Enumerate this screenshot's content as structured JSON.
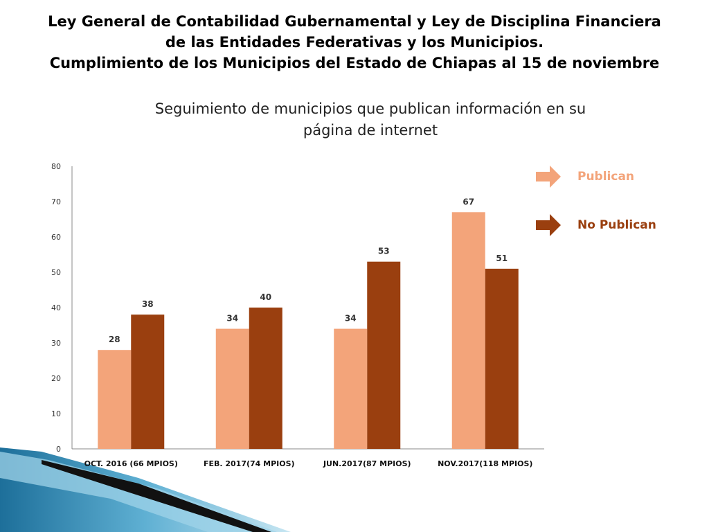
{
  "heading": {
    "line1": "Ley General de Contabilidad Gubernamental y Ley de Disciplina Financiera",
    "line2": "de las Entidades Federativas y los Municipios.",
    "line3": "Cumplimiento de los Municipios del Estado de Chiapas al 15 de noviembre"
  },
  "chart_data": {
    "type": "bar",
    "title": "Seguimiento de municipios que publican información en su página de internet",
    "title_lines": [
      "Seguimiento de municipios que publican información en su",
      "página de internet"
    ],
    "categories": [
      "OCT. 2016 (66 MPIOS)",
      "FEB. 2017(74 MPIOS)",
      "JUN.2017(87 MPIOS)",
      "NOV.2017(118 MPIOS)"
    ],
    "series": [
      {
        "name": "Publican",
        "values": [
          28,
          34,
          34,
          67
        ],
        "color": "#F3A47A"
      },
      {
        "name": "No Publican",
        "values": [
          38,
          40,
          53,
          51
        ],
        "color": "#9A3F0F"
      }
    ],
    "ylim": [
      0,
      80
    ],
    "yticks": [
      0,
      10,
      20,
      30,
      40,
      50,
      60,
      70,
      80
    ],
    "grid": false,
    "data_labels": true,
    "legend_position": "right"
  }
}
